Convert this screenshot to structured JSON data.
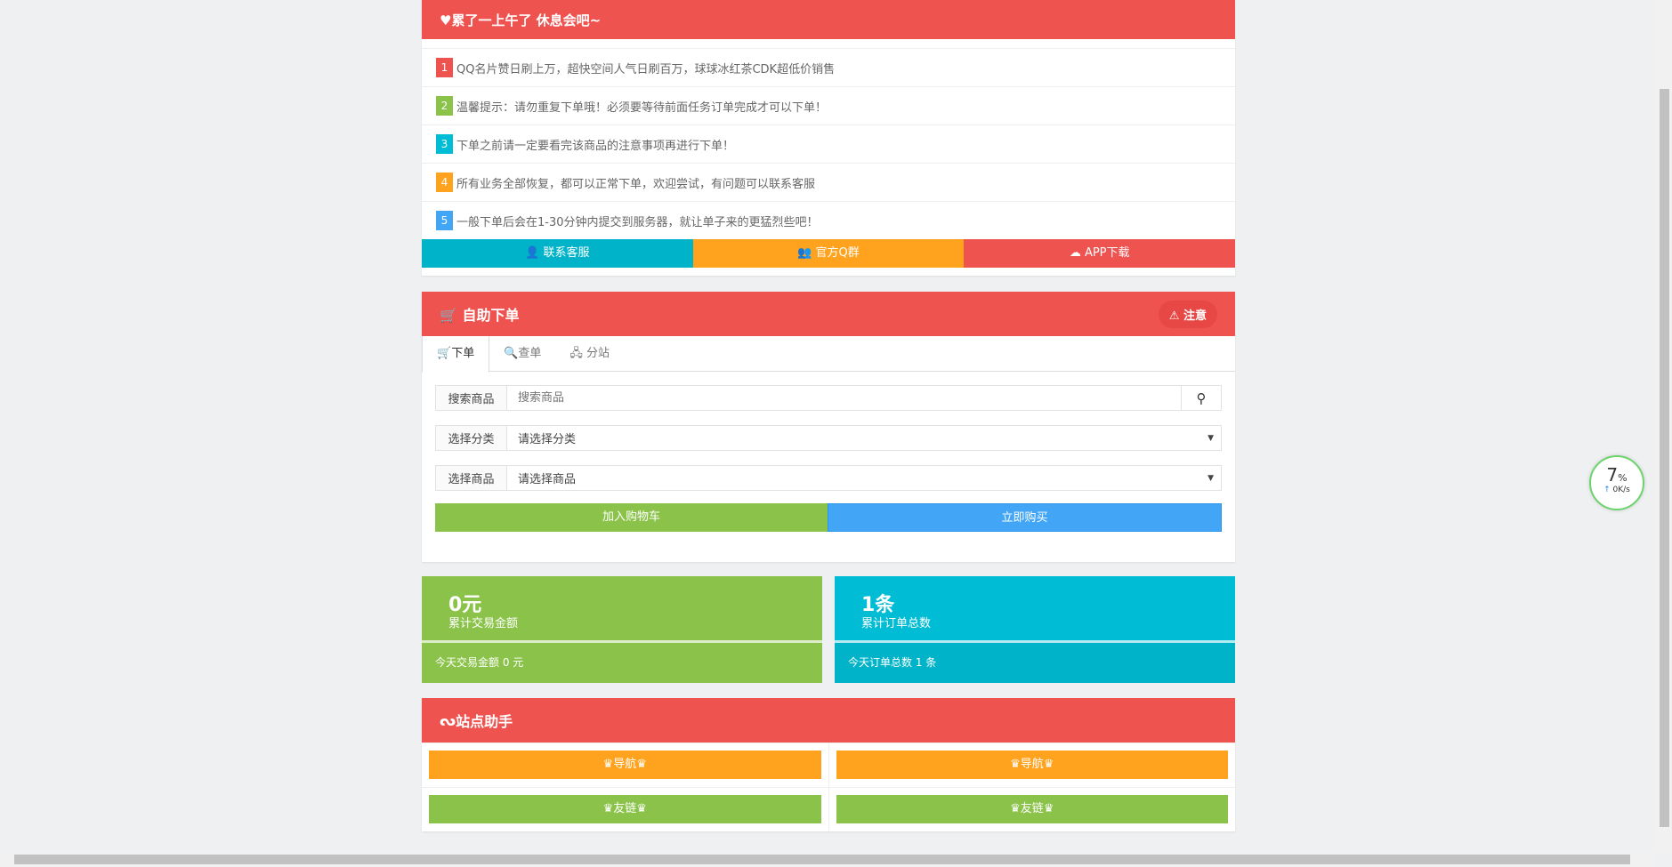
{
  "notice_panel": {
    "title": "♥累了一上午了 休息会吧~",
    "items": [
      {
        "num": "1",
        "text": "QQ名片赞日刷上万，超快空间人气日刷百万，球球冰红茶CDK超低价销售",
        "color": "#ef5350"
      },
      {
        "num": "2",
        "text": "温馨提示：请勿重复下单哦！必须要等待前面任务订单完成才可以下单！",
        "color": "#8bc34a"
      },
      {
        "num": "3",
        "text": "下单之前请一定要看完该商品的注意事项再进行下单！",
        "color": "#00bcd4"
      },
      {
        "num": "4",
        "text": "所有业务全部恢复，都可以正常下单，欢迎尝试，有问题可以联系客服",
        "color": "#ffa21d"
      },
      {
        "num": "5",
        "text": "一般下单后会在1-30分钟内提交到服务器，就让单子来的更猛烈些吧！",
        "color": "#42a5f5"
      }
    ],
    "buttons": [
      {
        "label": "联系客服",
        "icon": "qq-icon",
        "color": "#00b3c8"
      },
      {
        "label": "官方Q群",
        "icon": "group-icon",
        "color": "#ffa21d"
      },
      {
        "label": "APP下载",
        "icon": "cloud-download-icon",
        "color": "#ef5350"
      }
    ]
  },
  "order_panel": {
    "title": "自助下单",
    "notice_button": "注意",
    "tabs": [
      {
        "label": "下单",
        "icon": "cart-icon"
      },
      {
        "label": "查单",
        "icon": "search-icon"
      },
      {
        "label": "分站",
        "icon": "sitemap-icon"
      }
    ],
    "search_label": "搜索商品",
    "search_placeholder": "搜索商品",
    "category_label": "选择分类",
    "category_value": "请选择分类",
    "product_label": "选择商品",
    "product_value": "请选择商品",
    "add_cart": "加入购物车",
    "buy_now": "立即购买"
  },
  "stats": [
    {
      "big": "0元",
      "sub": "累计交易金额",
      "today": "今天交易金额 0 元",
      "color": "#8bc34a"
    },
    {
      "big": "1条",
      "sub": "累计订单总数",
      "today": "今天订单总数 1 条",
      "color": "#00bcd4"
    }
  ],
  "helper_panel": {
    "title": "站点助手",
    "buttons": [
      {
        "label": "导航",
        "color": "#ffa21d"
      },
      {
        "label": "导航",
        "color": "#ffa21d"
      },
      {
        "label": "友链",
        "color": "#8bc34a"
      },
      {
        "label": "友链",
        "color": "#8bc34a"
      }
    ]
  },
  "speed_widget": {
    "percent": "7",
    "unit": "%",
    "speed": "0K/s"
  },
  "colors": {
    "header": "#ef5350",
    "green": "#8bc34a",
    "blue": "#42a5f5",
    "cyan": "#00bcd4",
    "orange": "#ffa21d"
  }
}
